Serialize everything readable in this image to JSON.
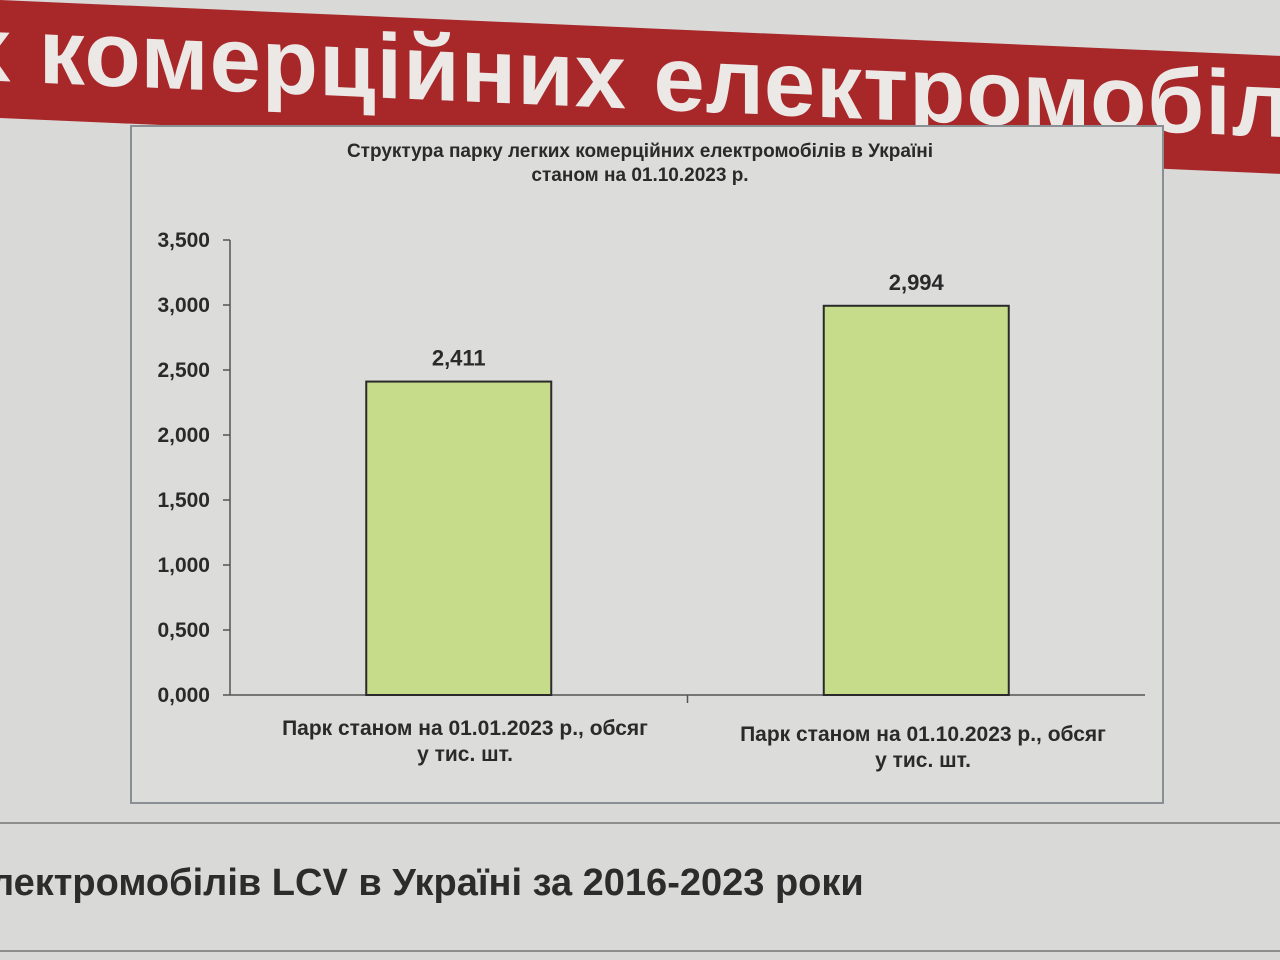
{
  "slide": {
    "banner_title": "х комерційних електромобіл",
    "subtitle": "лектромобілів LCV в Україні за 2016-2023 роки",
    "banner_color": "#a8282a"
  },
  "chart_data": {
    "type": "bar",
    "title": "Структура парку легких комерційних електромобілів в Україні станом на 01.10.2023 р.",
    "title_lines": [
      "Структура парку легких комерційних електромобілів в Україні",
      "станом на 01.10.2023 р."
    ],
    "categories": [
      "Парк станом на 01.01.2023 р., обсяг у тис. шт.",
      "Парк станом на 01.10.2023 р., обсяг у тис. шт."
    ],
    "category_lines": [
      [
        "Парк станом на 01.01.2023 р., обсяг",
        "у тис. шт."
      ],
      [
        "Парк станом на 01.10.2023 р., обсяг",
        "у тис. шт."
      ]
    ],
    "values": [
      2.411,
      2.994
    ],
    "data_labels": [
      "2,411",
      "2,994"
    ],
    "ylim": [
      0,
      3.5
    ],
    "yticks": [
      0,
      0.5,
      1,
      1.5,
      2,
      2.5,
      3,
      3.5
    ],
    "ytick_labels": [
      "0,000",
      "0,500",
      "1,000",
      "1,500",
      "2,000",
      "2,500",
      "3,000",
      "3,500"
    ],
    "bar_color": "#c6dc8a",
    "grid": false,
    "legend": "none"
  }
}
